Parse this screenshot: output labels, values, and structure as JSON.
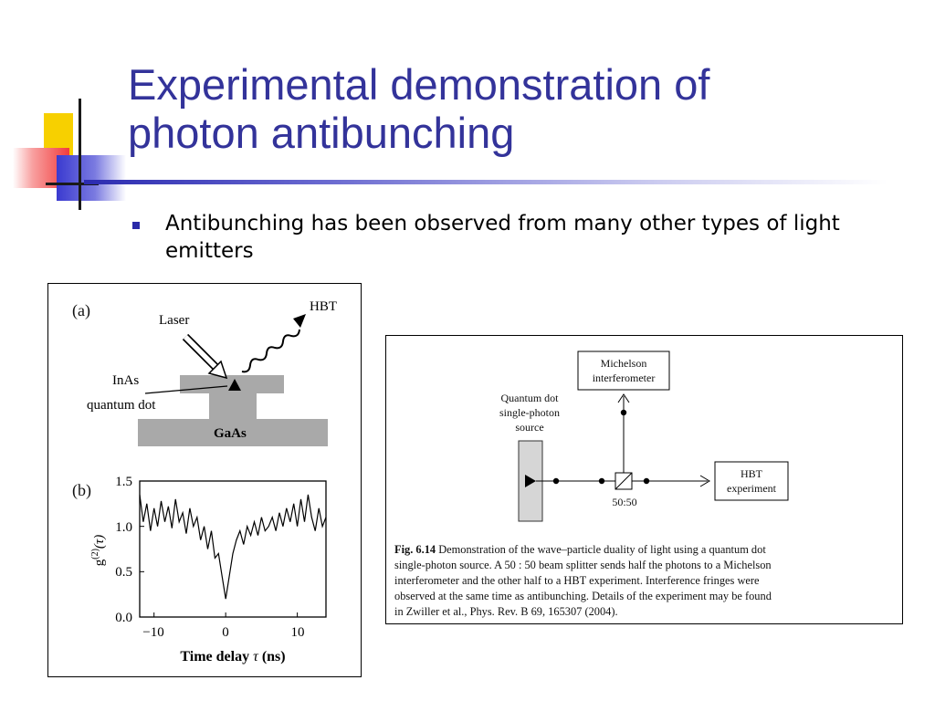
{
  "slide": {
    "title_line1": "Experimental demonstration of",
    "title_line2": "photon antibunching",
    "bullet": "Antibunching has been observed from many other types of light emitters"
  },
  "colors": {
    "title": "#33339a",
    "rule": "#2b2bb0",
    "deco_yellow": "#f7d000",
    "deco_red": "#f23c3c",
    "deco_blue": "#3a3ad0",
    "substrate_gray": "#a9a9a9"
  },
  "figure_a": {
    "panel_label": "(a)",
    "laser_label": "Laser",
    "hbt_label": "HBT",
    "inas_label": "InAs",
    "qd_label": "quantum dot",
    "gaas_label": "GaAs"
  },
  "figure_b": {
    "panel_label": "(b)",
    "ylabel": "g(2)(τ)",
    "ylabel_base": "g",
    "ylabel_sup": "(2)",
    "ylabel_arg": "(τ)",
    "xlabel": "Time delay τ (ns)",
    "xlabel_prefix": "Time delay ",
    "xlabel_tau": "τ",
    "xlabel_suffix": " (ns)",
    "yticks": [
      "1.5",
      "1.0",
      "0.5",
      "0.0"
    ],
    "xticks": [
      "−10",
      "0",
      "10"
    ]
  },
  "chart_data": {
    "type": "line",
    "xlabel": "Time delay τ (ns)",
    "ylabel": "g(2)(τ)",
    "xlim": [
      -12,
      14
    ],
    "ylim": [
      0,
      1.5
    ],
    "series": [
      {
        "x": [
          -12,
          -11.5,
          -11,
          -10.5,
          -10,
          -9.5,
          -9,
          -8.5,
          -8,
          -7.5,
          -7,
          -6.5,
          -6,
          -5.5,
          -5,
          -4.5,
          -4,
          -3.5,
          -3,
          -2.5,
          -2,
          -1.5,
          -1,
          -0.5,
          0,
          0.5,
          1,
          1.5,
          2,
          2.5,
          3,
          3.5,
          4,
          4.5,
          5,
          5.5,
          6,
          6.5,
          7,
          7.5,
          8,
          8.5,
          9,
          9.5,
          10,
          10.5,
          11,
          11.5,
          12,
          12.5,
          13,
          13.5,
          14
        ],
        "y": [
          1.35,
          1.05,
          1.25,
          0.95,
          1.2,
          1.0,
          1.28,
          1.05,
          1.22,
          0.98,
          1.3,
          1.05,
          1.15,
          0.92,
          1.2,
          1.0,
          1.1,
          0.85,
          1.0,
          0.75,
          0.95,
          0.65,
          0.7,
          0.45,
          0.2,
          0.45,
          0.7,
          0.85,
          0.95,
          0.8,
          1.0,
          0.9,
          1.05,
          0.9,
          1.1,
          0.95,
          1.0,
          1.1,
          0.95,
          1.15,
          1.0,
          1.2,
          1.05,
          1.25,
          1.0,
          1.3,
          1.05,
          1.35,
          1.1,
          0.95,
          1.2,
          1.0,
          1.1
        ]
      }
    ]
  },
  "figure_c": {
    "source_label_1": "Quantum dot",
    "source_label_2": "single-photon",
    "source_label_3": "source",
    "michelson_1": "Michelson",
    "michelson_2": "interferometer",
    "splitter_label": "50:50",
    "hbt_1": "HBT",
    "hbt_2": "experiment",
    "caption_fig": "Fig. 6.14",
    "caption_lines": [
      "Demonstration of the wave–particle duality of light using a quantum dot",
      "single-photon source. A 50 : 50 beam splitter sends half the photons to a Michelson",
      "interferometer and the other half to a HBT experiment. Interference fringes were",
      "observed at the same time as antibunching. Details of the experiment may be found",
      "in Zwiller et al., Phys. Rev. B 69, 165307 (2004)."
    ]
  }
}
